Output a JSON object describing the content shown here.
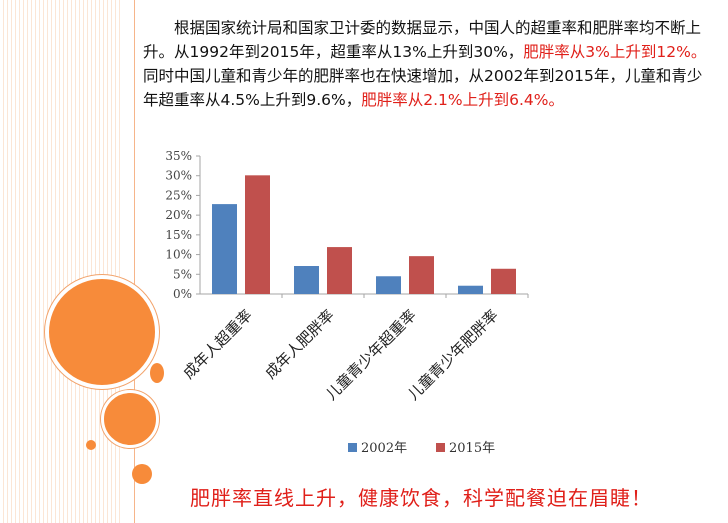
{
  "paragraph": {
    "segments": [
      {
        "text": "根据国家统计局和国家卫计委的数据显示，中国人的超重率和肥胖率均不断上升。从1992年到2015年，超重率从13%上升到30%，",
        "color": "#111111"
      },
      {
        "text": "肥胖率从3%上升到12%。",
        "color": "#e0201a"
      },
      {
        "text": "同时中国儿童和青少年的肥胖率也在快速增加，从2002年到2015年，儿童和青少年超重率从4.5%上升到9.6%，",
        "color": "#111111"
      },
      {
        "text": "肥胖率从2.1%上升到6.4%。",
        "color": "#e0201a"
      }
    ]
  },
  "chart_data": {
    "type": "bar",
    "categories": [
      "成年人超重率",
      "成年人肥胖率",
      "儿童青少年超重率",
      "儿童青少年肥胖率"
    ],
    "series": [
      {
        "name": "2002年",
        "values": [
          22.8,
          7.1,
          4.5,
          2.1
        ],
        "color": "#4f81bd"
      },
      {
        "name": "2015年",
        "values": [
          30.1,
          11.9,
          9.6,
          6.4
        ],
        "color": "#c0504d"
      }
    ],
    "ylim": [
      0,
      35
    ],
    "yticks": [
      "0%",
      "5%",
      "10%",
      "15%",
      "20%",
      "25%",
      "30%",
      "35%"
    ],
    "grid": false,
    "legend_position": "bottom"
  },
  "slogan": "肥胖率直线上升，健康饮食，科学配餐迫在眉睫！"
}
